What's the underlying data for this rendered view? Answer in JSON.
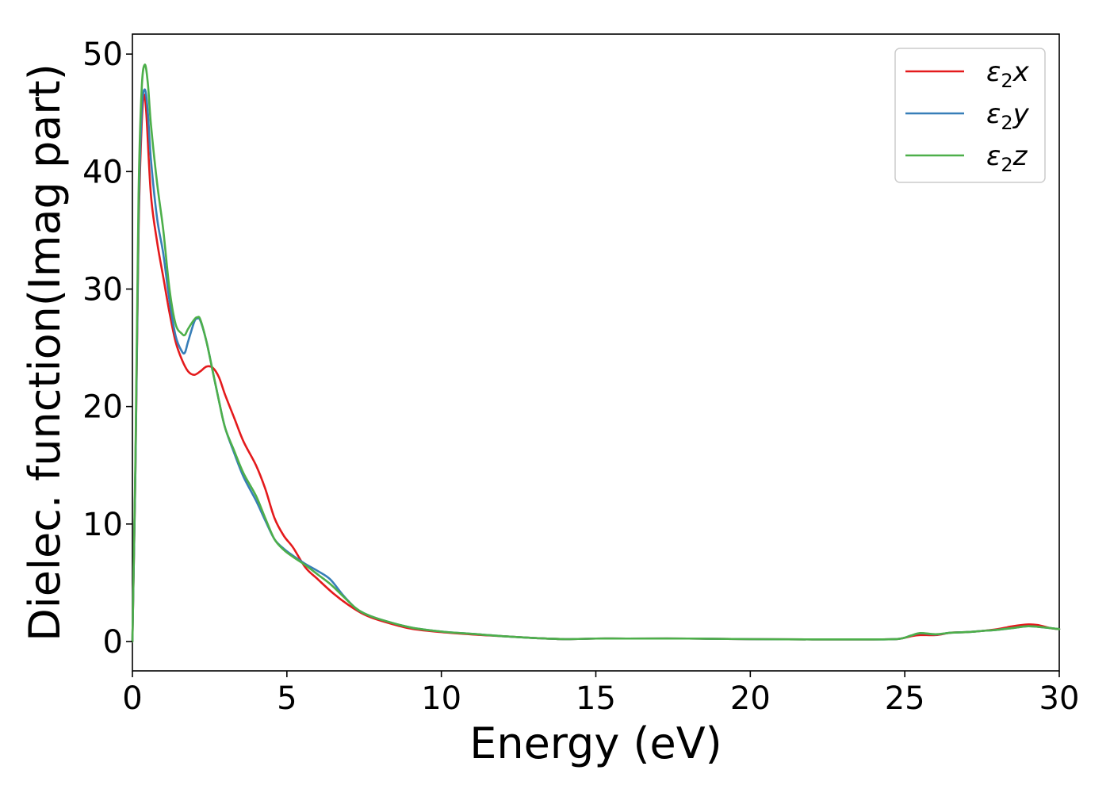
{
  "chart_data": {
    "type": "line",
    "title": "",
    "xlabel": "Energy (eV)",
    "ylabel": "Dielec. function(Imag part)",
    "xlim": [
      0,
      30
    ],
    "ylim": [
      -2.5,
      51.7
    ],
    "xticks": [
      0,
      5,
      10,
      15,
      20,
      25,
      30
    ],
    "yticks": [
      0,
      10,
      20,
      30,
      40,
      50
    ],
    "grid": false,
    "legend_position": "top-right",
    "series": [
      {
        "name": "ε₂x",
        "label_main": "ε",
        "label_sub": "2",
        "label_tail": "x",
        "color": "#e41a1c",
        "points": [
          [
            0,
            0
          ],
          [
            0.1,
            15
          ],
          [
            0.2,
            35
          ],
          [
            0.3,
            44
          ],
          [
            0.38,
            46.5
          ],
          [
            0.45,
            45
          ],
          [
            0.6,
            38
          ],
          [
            0.8,
            34
          ],
          [
            1.0,
            31
          ],
          [
            1.2,
            28
          ],
          [
            1.4,
            25.5
          ],
          [
            1.6,
            24
          ],
          [
            1.8,
            23
          ],
          [
            2.0,
            22.7
          ],
          [
            2.2,
            23
          ],
          [
            2.4,
            23.4
          ],
          [
            2.6,
            23.3
          ],
          [
            2.8,
            22.5
          ],
          [
            3.0,
            21
          ],
          [
            3.3,
            19
          ],
          [
            3.6,
            17
          ],
          [
            4.0,
            15
          ],
          [
            4.3,
            13
          ],
          [
            4.6,
            10.5
          ],
          [
            4.9,
            9
          ],
          [
            5.2,
            8
          ],
          [
            5.6,
            6.3
          ],
          [
            6.0,
            5.3
          ],
          [
            6.5,
            4.1
          ],
          [
            7.0,
            3.1
          ],
          [
            7.5,
            2.3
          ],
          [
            8.0,
            1.8
          ],
          [
            9.0,
            1.1
          ],
          [
            10.0,
            0.8
          ],
          [
            11.0,
            0.6
          ],
          [
            12.0,
            0.45
          ],
          [
            13.0,
            0.3
          ],
          [
            14.0,
            0.2
          ],
          [
            15.0,
            0.25
          ],
          [
            16.0,
            0.25
          ],
          [
            18.0,
            0.25
          ],
          [
            20.0,
            0.2
          ],
          [
            22.0,
            0.18
          ],
          [
            24.0,
            0.18
          ],
          [
            24.8,
            0.22
          ],
          [
            25.2,
            0.45
          ],
          [
            25.5,
            0.55
          ],
          [
            26.0,
            0.55
          ],
          [
            26.5,
            0.75
          ],
          [
            27.0,
            0.8
          ],
          [
            27.5,
            0.9
          ],
          [
            28.0,
            1.05
          ],
          [
            28.5,
            1.3
          ],
          [
            29.0,
            1.45
          ],
          [
            29.3,
            1.4
          ],
          [
            29.7,
            1.15
          ],
          [
            30.0,
            1.05
          ]
        ]
      },
      {
        "name": "ε₂y",
        "label_main": "ε",
        "label_sub": "2",
        "label_tail": "y",
        "color": "#377eb8",
        "points": [
          [
            0,
            0
          ],
          [
            0.1,
            15
          ],
          [
            0.2,
            36
          ],
          [
            0.3,
            45
          ],
          [
            0.4,
            47
          ],
          [
            0.5,
            45
          ],
          [
            0.6,
            41
          ],
          [
            0.8,
            36
          ],
          [
            1.0,
            33
          ],
          [
            1.2,
            29
          ],
          [
            1.4,
            26
          ],
          [
            1.6,
            24.7
          ],
          [
            1.7,
            24.6
          ],
          [
            1.8,
            25.5
          ],
          [
            2.0,
            27.2
          ],
          [
            2.1,
            27.5
          ],
          [
            2.2,
            27.3
          ],
          [
            2.4,
            25.5
          ],
          [
            2.6,
            23
          ],
          [
            2.8,
            20.5
          ],
          [
            3.0,
            18.2
          ],
          [
            3.3,
            16
          ],
          [
            3.6,
            14
          ],
          [
            4.0,
            12
          ],
          [
            4.3,
            10.3
          ],
          [
            4.6,
            8.7
          ],
          [
            4.9,
            7.9
          ],
          [
            5.2,
            7.3
          ],
          [
            5.6,
            6.6
          ],
          [
            6.0,
            6
          ],
          [
            6.4,
            5.3
          ],
          [
            6.8,
            4
          ],
          [
            7.2,
            2.9
          ],
          [
            7.5,
            2.4
          ],
          [
            8.0,
            1.9
          ],
          [
            9.0,
            1.2
          ],
          [
            10.0,
            0.85
          ],
          [
            11.0,
            0.65
          ],
          [
            12.0,
            0.45
          ],
          [
            13.0,
            0.3
          ],
          [
            14.0,
            0.2
          ],
          [
            15.0,
            0.25
          ],
          [
            16.0,
            0.25
          ],
          [
            18.0,
            0.25
          ],
          [
            20.0,
            0.2
          ],
          [
            22.0,
            0.18
          ],
          [
            24.0,
            0.18
          ],
          [
            24.8,
            0.22
          ],
          [
            25.2,
            0.5
          ],
          [
            25.5,
            0.7
          ],
          [
            26.0,
            0.6
          ],
          [
            26.5,
            0.75
          ],
          [
            27.0,
            0.8
          ],
          [
            27.5,
            0.9
          ],
          [
            28.0,
            1.0
          ],
          [
            28.5,
            1.15
          ],
          [
            29.0,
            1.3
          ],
          [
            29.5,
            1.2
          ],
          [
            30.0,
            1.05
          ]
        ]
      },
      {
        "name": "ε₂z",
        "label_main": "ε",
        "label_sub": "2",
        "label_tail": "z",
        "color": "#4daf4a",
        "points": [
          [
            0,
            0
          ],
          [
            0.1,
            16
          ],
          [
            0.2,
            38
          ],
          [
            0.3,
            47
          ],
          [
            0.4,
            49.1
          ],
          [
            0.5,
            47.5
          ],
          [
            0.6,
            44
          ],
          [
            0.8,
            39
          ],
          [
            1.0,
            35
          ],
          [
            1.2,
            30
          ],
          [
            1.4,
            27
          ],
          [
            1.6,
            26.2
          ],
          [
            1.7,
            26.1
          ],
          [
            1.8,
            26.6
          ],
          [
            2.0,
            27.4
          ],
          [
            2.1,
            27.6
          ],
          [
            2.2,
            27.4
          ],
          [
            2.4,
            25.5
          ],
          [
            2.6,
            23
          ],
          [
            2.8,
            20.5
          ],
          [
            3.0,
            18.2
          ],
          [
            3.3,
            16.2
          ],
          [
            3.6,
            14.3
          ],
          [
            4.0,
            12.4
          ],
          [
            4.3,
            10.5
          ],
          [
            4.6,
            8.7
          ],
          [
            4.9,
            7.8
          ],
          [
            5.2,
            7.2
          ],
          [
            5.6,
            6.5
          ],
          [
            6.0,
            5.7
          ],
          [
            6.4,
            4.9
          ],
          [
            6.8,
            3.9
          ],
          [
            7.2,
            2.9
          ],
          [
            7.5,
            2.4
          ],
          [
            8.0,
            1.9
          ],
          [
            9.0,
            1.2
          ],
          [
            10.0,
            0.85
          ],
          [
            11.0,
            0.65
          ],
          [
            12.0,
            0.45
          ],
          [
            13.0,
            0.3
          ],
          [
            14.0,
            0.2
          ],
          [
            15.0,
            0.25
          ],
          [
            16.0,
            0.25
          ],
          [
            18.0,
            0.25
          ],
          [
            20.0,
            0.2
          ],
          [
            22.0,
            0.18
          ],
          [
            24.0,
            0.18
          ],
          [
            24.8,
            0.22
          ],
          [
            25.2,
            0.5
          ],
          [
            25.5,
            0.72
          ],
          [
            26.0,
            0.62
          ],
          [
            26.5,
            0.75
          ],
          [
            27.0,
            0.8
          ],
          [
            27.5,
            0.9
          ],
          [
            28.0,
            1.0
          ],
          [
            28.5,
            1.15
          ],
          [
            29.0,
            1.3
          ],
          [
            29.5,
            1.2
          ],
          [
            30.0,
            1.05
          ]
        ]
      }
    ]
  }
}
